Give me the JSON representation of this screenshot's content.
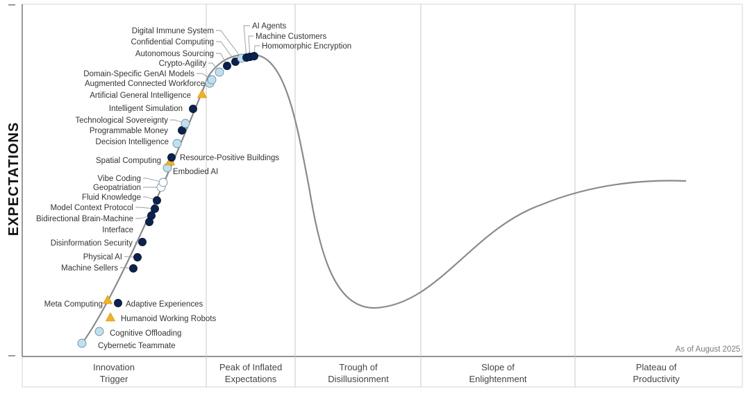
{
  "chart_data": {
    "type": "line",
    "title": "",
    "ylabel": "EXPECTATIONS",
    "xlabel": "",
    "as_of_note": "As of August 2025",
    "grid": true,
    "phases": [
      {
        "label_line1": "Innovation",
        "label_line2": "Trigger"
      },
      {
        "label_line1": "Peak of Inflated",
        "label_line2": "Expectations"
      },
      {
        "label_line1": "Trough of",
        "label_line2": "Disillusionment"
      },
      {
        "label_line1": "Slope of",
        "label_line2": "Enlightenment"
      },
      {
        "label_line1": "Plateau of",
        "label_line2": "Productivity"
      }
    ],
    "legend_marker_kinds": {
      "light": "#bfe0ef",
      "dark": "#0b2250",
      "white": "#ffffff",
      "triangle": "#f2b31c"
    },
    "curve_color": "#8a8a8a",
    "technologies": [
      {
        "name": "Cybernetic Teammate",
        "marker": "light"
      },
      {
        "name": "Cognitive Offloading",
        "marker": "light"
      },
      {
        "name": "Humanoid Working Robots",
        "marker": "triangle"
      },
      {
        "name": "Adaptive Experiences",
        "marker": "dark"
      },
      {
        "name": "Meta Computing",
        "marker": "triangle"
      },
      {
        "name": "Machine Sellers",
        "marker": "dark"
      },
      {
        "name": "Physical AI",
        "marker": "dark"
      },
      {
        "name": "Disinformation Security",
        "marker": "dark"
      },
      {
        "name": "Interface",
        "marker": "dark"
      },
      {
        "name": "Bidirectional Brain-Machine",
        "marker": "dark"
      },
      {
        "name": "Model Context Protocol",
        "marker": "dark"
      },
      {
        "name": "Fluid Knowledge",
        "marker": "dark"
      },
      {
        "name": "Geopatriation",
        "marker": "white"
      },
      {
        "name": "Vibe Coding",
        "marker": "white"
      },
      {
        "name": "Embodied AI",
        "marker": "light"
      },
      {
        "name": "Spatial Computing",
        "marker": "triangle"
      },
      {
        "name": "Resource-Positive Buildings",
        "marker": "dark"
      },
      {
        "name": "Decision Intelligence",
        "marker": "light"
      },
      {
        "name": "Programmable Money",
        "marker": "dark"
      },
      {
        "name": "Technological Sovereignty",
        "marker": "light"
      },
      {
        "name": "Intelligent Simulation",
        "marker": "dark"
      },
      {
        "name": "Artificial General Intelligence",
        "marker": "triangle"
      },
      {
        "name": "Augmented Connected Workforce",
        "marker": "light"
      },
      {
        "name": "Domain-Specific GenAI Models",
        "marker": "light"
      },
      {
        "name": "Crypto-Agility",
        "marker": "light"
      },
      {
        "name": "Autonomous Sourcing",
        "marker": "dark"
      },
      {
        "name": "Confidential Computing",
        "marker": "dark"
      },
      {
        "name": "Digital Immune System",
        "marker": "light"
      },
      {
        "name": "AI Agents",
        "marker": "dark"
      },
      {
        "name": "Machine Customers",
        "marker": "dark"
      },
      {
        "name": "Homomorphic Encryption",
        "marker": "dark"
      }
    ]
  }
}
